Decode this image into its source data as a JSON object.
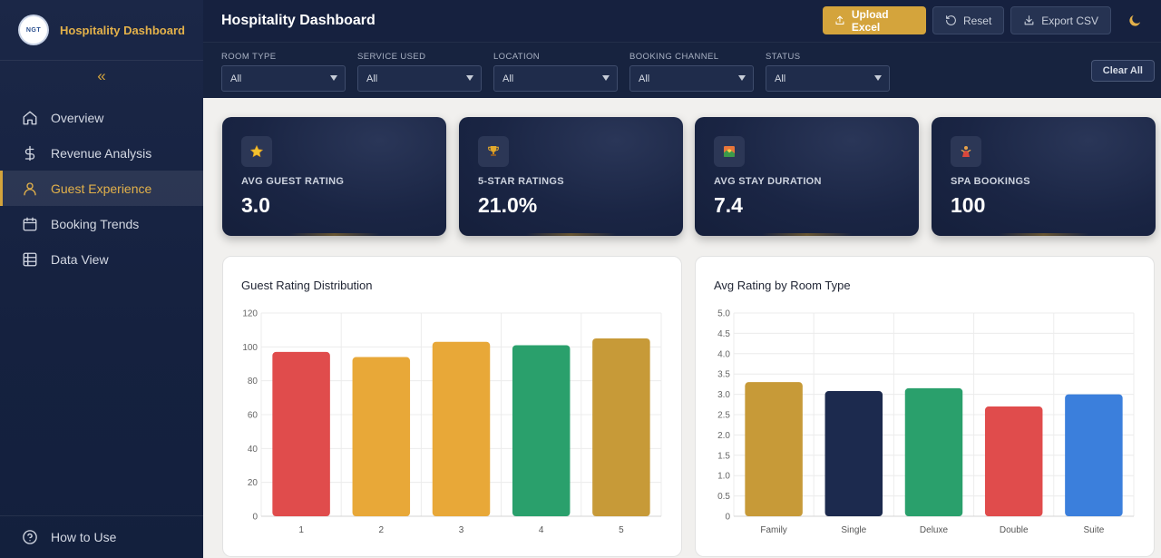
{
  "sidebar": {
    "logo_text": "NGT",
    "brand": "Hospitality Dashboard",
    "collapse_icon": "«",
    "items": [
      {
        "label": "Overview",
        "icon": "home-icon"
      },
      {
        "label": "Revenue Analysis",
        "icon": "dollar-icon"
      },
      {
        "label": "Guest Experience",
        "icon": "user-icon",
        "active": true
      },
      {
        "label": "Booking Trends",
        "icon": "calendar-icon"
      },
      {
        "label": "Data View",
        "icon": "table-icon"
      }
    ],
    "help": "How to Use"
  },
  "header": {
    "title": "Hospitality Dashboard",
    "upload": "Upload Excel",
    "reset": "Reset",
    "export": "Export CSV"
  },
  "filters": {
    "items": [
      {
        "label": "ROOM TYPE",
        "value": "All"
      },
      {
        "label": "SERVICE USED",
        "value": "All"
      },
      {
        "label": "LOCATION",
        "value": "All"
      },
      {
        "label": "BOOKING CHANNEL",
        "value": "All"
      },
      {
        "label": "STATUS",
        "value": "All"
      }
    ],
    "clear": "Clear All"
  },
  "kpis": [
    {
      "label": "AVG GUEST RATING",
      "value": "3.0",
      "icon": "star-icon"
    },
    {
      "label": "5-STAR RATINGS",
      "value": "21.0%",
      "icon": "trophy-icon"
    },
    {
      "label": "AVG STAY DURATION",
      "value": "7.4",
      "icon": "sunset-icon"
    },
    {
      "label": "SPA BOOKINGS",
      "value": "100",
      "icon": "spa-icon"
    }
  ],
  "colors": {
    "gold": "#d4a43c",
    "navy": "#1a2544"
  },
  "chart_data": [
    {
      "type": "bar",
      "title": "Guest Rating Distribution",
      "categories": [
        "1",
        "2",
        "3",
        "4",
        "5"
      ],
      "values": [
        97,
        94,
        103,
        101,
        105
      ],
      "ylim": [
        0,
        120
      ],
      "yticks": [
        0,
        20,
        40,
        60,
        80,
        100,
        120
      ],
      "colors": [
        "#e04c4c",
        "#e8a838",
        "#e8a838",
        "#2aa06c",
        "#c79a38"
      ],
      "grid": true
    },
    {
      "type": "bar",
      "title": "Avg Rating by Room Type",
      "categories": [
        "Family",
        "Single",
        "Deluxe",
        "Double",
        "Suite"
      ],
      "values": [
        3.3,
        3.08,
        3.15,
        2.7,
        3.0
      ],
      "ylim": [
        0,
        5
      ],
      "yticks": [
        "0",
        "0.5",
        "1.0",
        "1.5",
        "2.0",
        "2.5",
        "3.0",
        "3.5",
        "4.0",
        "4.5",
        "5.0"
      ],
      "colors": [
        "#c79a38",
        "#1c2a4e",
        "#2aa06c",
        "#e04c4c",
        "#3b7fdc"
      ],
      "grid": true
    }
  ]
}
